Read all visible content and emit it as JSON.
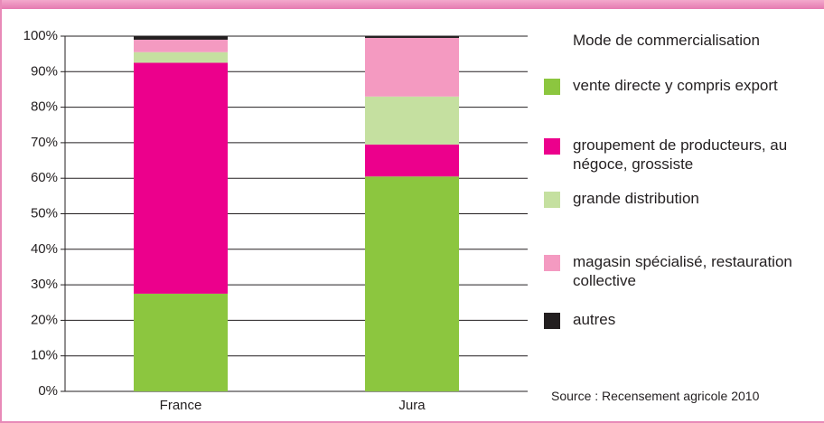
{
  "chart_data": {
    "type": "stacked_bar",
    "legend_title": "Mode de commercialisation",
    "annotation": "Source : Recensement agricole 2010",
    "categories": [
      "France",
      "Jura"
    ],
    "series": [
      {
        "name": "vente directe y compris export",
        "color": "#8cc63f",
        "values": [
          27.5,
          60.5
        ]
      },
      {
        "name": "groupement de producteurs, au négoce, grossiste",
        "color": "#ec008c",
        "values": [
          65,
          9
        ]
      },
      {
        "name": "grande distribution",
        "color": "#c5e0a0",
        "values": [
          3,
          13.5
        ]
      },
      {
        "name": "magasin spécialisé, restauration collective",
        "color": "#f49ac1",
        "values": [
          3.5,
          16.5
        ]
      },
      {
        "name": "autres",
        "color": "#231f20",
        "values": [
          1,
          0.5
        ]
      }
    ],
    "ylim": [
      0,
      100
    ],
    "yticks": [
      {
        "value": 0,
        "label": "0%"
      },
      {
        "value": 10,
        "label": "10%"
      },
      {
        "value": 20,
        "label": "20%"
      },
      {
        "value": 30,
        "label": "30%"
      },
      {
        "value": 40,
        "label": "40%"
      },
      {
        "value": 50,
        "label": "50%"
      },
      {
        "value": 60,
        "label": "60%"
      },
      {
        "value": 70,
        "label": "70%"
      },
      {
        "value": 80,
        "label": "80%"
      },
      {
        "value": 90,
        "label": "90%"
      },
      {
        "value": 100,
        "label": "100%"
      }
    ],
    "grid": true,
    "legend": "right"
  }
}
